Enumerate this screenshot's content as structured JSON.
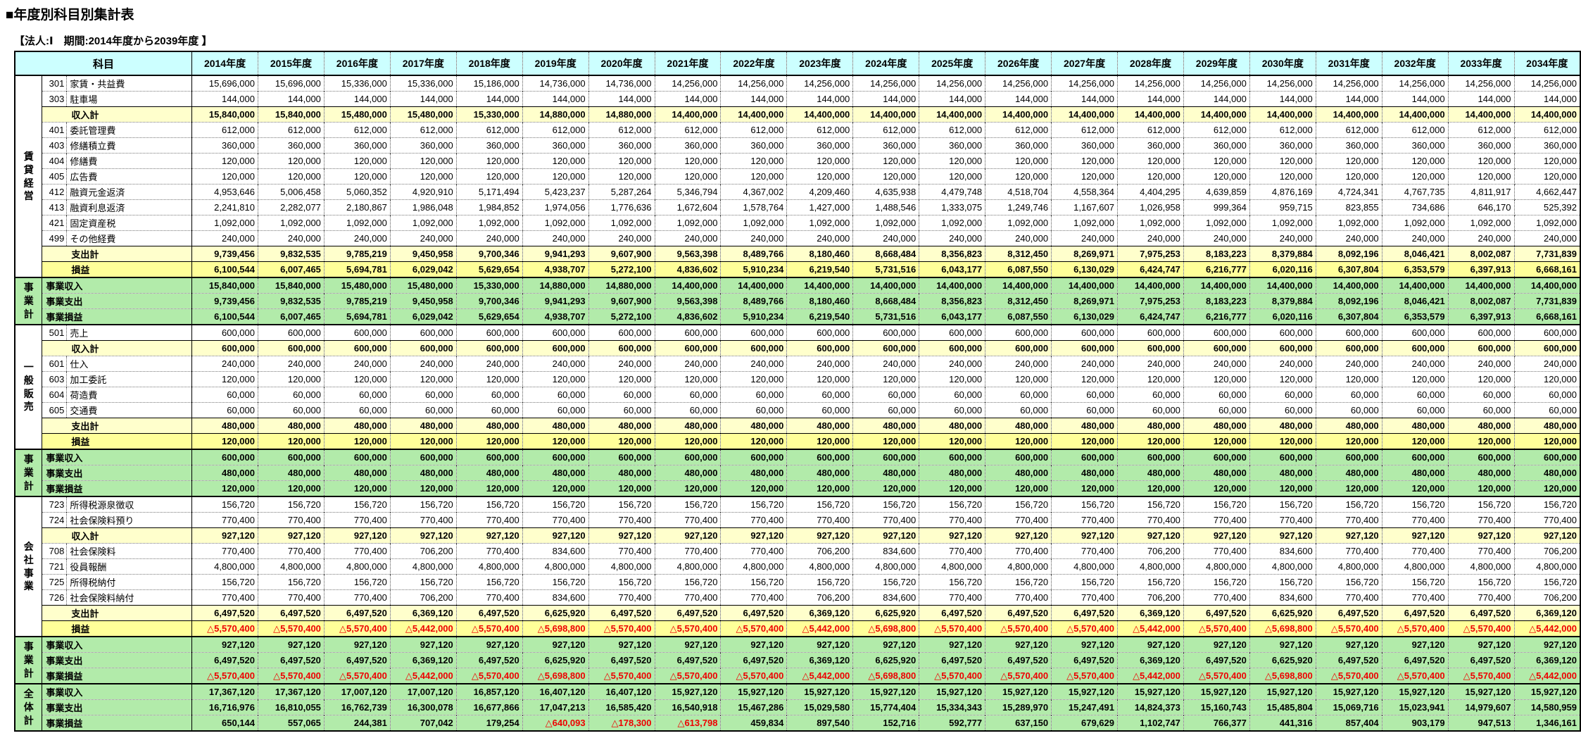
{
  "page": {
    "title": "■年度別科目別集計表",
    "subtitle": "【法人:Ⅰ　期間:2014年度から2039年度 】"
  },
  "colors": {
    "header_bg": "#CCFFFF",
    "group_blue_bg": "#99CCFF",
    "subtotal_bg": "#FFFFCC",
    "profit_bg": "#FFFF99",
    "business_bg": "#B2EBAA",
    "negative_text": "#EE0000"
  },
  "table": {
    "subject_header": "科目",
    "year_columns": [
      "2014年度",
      "2015年度",
      "2016年度",
      "2017年度",
      "2018年度",
      "2019年度",
      "2020年度",
      "2021年度",
      "2022年度",
      "2023年度",
      "2024年度",
      "2025年度",
      "2026年度",
      "2027年度",
      "2028年度",
      "2029年度",
      "2030年度",
      "2031年度",
      "2032年度",
      "2033年度",
      "2034年度"
    ],
    "sections": [
      {
        "group": "賃貸経営",
        "group_style": "grp-cyan",
        "rows": [
          {
            "code": "301",
            "label": "家賃・共益費",
            "style": "item",
            "values": [
              "15,696,000",
              "15,696,000",
              "15,336,000",
              "15,336,000",
              "15,186,000",
              "14,736,000",
              "14,736,000",
              "14,256,000",
              "14,256,000",
              "14,256,000",
              "14,256,000",
              "14,256,000",
              "14,256,000",
              "14,256,000",
              "14,256,000",
              "14,256,000",
              "14,256,000",
              "14,256,000",
              "14,256,000",
              "14,256,000",
              "14,256,000"
            ]
          },
          {
            "code": "303",
            "label": "駐車場",
            "style": "item",
            "fill": "144,000"
          },
          {
            "label": "収入計",
            "style": "subtotal",
            "values": [
              "15,840,000",
              "15,840,000",
              "15,480,000",
              "15,480,000",
              "15,330,000",
              "14,880,000",
              "14,880,000",
              "14,400,000",
              "14,400,000",
              "14,400,000",
              "14,400,000",
              "14,400,000",
              "14,400,000",
              "14,400,000",
              "14,400,000",
              "14,400,000",
              "14,400,000",
              "14,400,000",
              "14,400,000",
              "14,400,000",
              "14,400,000"
            ]
          },
          {
            "code": "401",
            "label": "委託管理費",
            "style": "item",
            "fill": "612,000"
          },
          {
            "code": "403",
            "label": "修繕積立費",
            "style": "item",
            "fill": "360,000"
          },
          {
            "code": "404",
            "label": "修繕費",
            "style": "item",
            "fill": "120,000"
          },
          {
            "code": "405",
            "label": "広告費",
            "style": "item",
            "fill": "120,000"
          },
          {
            "code": "412",
            "label": "融資元金返済",
            "style": "item",
            "values": [
              "4,953,646",
              "5,006,458",
              "5,060,352",
              "4,920,910",
              "5,171,494",
              "5,423,237",
              "5,287,264",
              "5,346,794",
              "4,367,002",
              "4,209,460",
              "4,635,938",
              "4,479,748",
              "4,518,704",
              "4,558,364",
              "4,404,295",
              "4,639,859",
              "4,876,169",
              "4,724,341",
              "4,767,735",
              "4,811,917",
              "4,662,447"
            ]
          },
          {
            "code": "413",
            "label": "融資利息返済",
            "style": "item",
            "values": [
              "2,241,810",
              "2,282,077",
              "2,180,867",
              "1,986,048",
              "1,984,852",
              "1,974,056",
              "1,776,636",
              "1,672,604",
              "1,578,764",
              "1,427,000",
              "1,488,546",
              "1,333,075",
              "1,249,746",
              "1,167,607",
              "1,026,958",
              "999,364",
              "959,715",
              "823,855",
              "734,686",
              "646,170",
              "525,392"
            ]
          },
          {
            "code": "421",
            "label": "固定資産税",
            "style": "item",
            "fill": "1,092,000"
          },
          {
            "code": "499",
            "label": "その他経費",
            "style": "item",
            "fill": "240,000"
          },
          {
            "label": "支出計",
            "style": "subtotal",
            "values": [
              "9,739,456",
              "9,832,535",
              "9,785,219",
              "9,450,958",
              "9,700,346",
              "9,941,293",
              "9,607,900",
              "9,563,398",
              "8,489,766",
              "8,180,460",
              "8,668,484",
              "8,356,823",
              "8,312,450",
              "8,269,971",
              "7,975,253",
              "8,183,223",
              "8,379,884",
              "8,092,196",
              "8,046,421",
              "8,002,087",
              "7,731,839"
            ]
          },
          {
            "label": "損益",
            "style": "profit",
            "values": [
              "6,100,544",
              "6,007,465",
              "5,694,781",
              "6,029,042",
              "5,629,654",
              "4,938,707",
              "5,272,100",
              "4,836,602",
              "5,910,234",
              "6,219,540",
              "5,731,516",
              "6,043,177",
              "6,087,550",
              "6,130,029",
              "6,424,747",
              "6,216,777",
              "6,020,116",
              "6,307,804",
              "6,353,579",
              "6,397,913",
              "6,668,161"
            ]
          }
        ]
      },
      {
        "group": "事業計",
        "group_style": "grp-blue",
        "rows": [
          {
            "label": "事業収入",
            "style": "business",
            "values": [
              "15,840,000",
              "15,840,000",
              "15,480,000",
              "15,480,000",
              "15,330,000",
              "14,880,000",
              "14,880,000",
              "14,400,000",
              "14,400,000",
              "14,400,000",
              "14,400,000",
              "14,400,000",
              "14,400,000",
              "14,400,000",
              "14,400,000",
              "14,400,000",
              "14,400,000",
              "14,400,000",
              "14,400,000",
              "14,400,000",
              "14,400,000"
            ]
          },
          {
            "label": "事業支出",
            "style": "business",
            "values": [
              "9,739,456",
              "9,832,535",
              "9,785,219",
              "9,450,958",
              "9,700,346",
              "9,941,293",
              "9,607,900",
              "9,563,398",
              "8,489,766",
              "8,180,460",
              "8,668,484",
              "8,356,823",
              "8,312,450",
              "8,269,971",
              "7,975,253",
              "8,183,223",
              "8,379,884",
              "8,092,196",
              "8,046,421",
              "8,002,087",
              "7,731,839"
            ]
          },
          {
            "label": "事業損益",
            "style": "business",
            "values": [
              "6,100,544",
              "6,007,465",
              "5,694,781",
              "6,029,042",
              "5,629,654",
              "4,938,707",
              "5,272,100",
              "4,836,602",
              "5,910,234",
              "6,219,540",
              "5,731,516",
              "6,043,177",
              "6,087,550",
              "6,130,029",
              "6,424,747",
              "6,216,777",
              "6,020,116",
              "6,307,804",
              "6,353,579",
              "6,397,913",
              "6,668,161"
            ]
          }
        ]
      },
      {
        "group": "一般販売",
        "group_style": "grp-cyan",
        "rows": [
          {
            "code": "501",
            "label": "売上",
            "style": "item",
            "fill": "600,000"
          },
          {
            "label": "収入計",
            "style": "subtotal",
            "fill": "600,000"
          },
          {
            "code": "601",
            "label": "仕入",
            "style": "item",
            "fill": "240,000"
          },
          {
            "code": "603",
            "label": "加工委託",
            "style": "item",
            "fill": "120,000"
          },
          {
            "code": "604",
            "label": "荷造費",
            "style": "item",
            "fill": "60,000"
          },
          {
            "code": "605",
            "label": "交通費",
            "style": "item",
            "fill": "60,000"
          },
          {
            "label": "支出計",
            "style": "subtotal",
            "fill": "480,000"
          },
          {
            "label": "損益",
            "style": "profit",
            "fill": "120,000"
          }
        ]
      },
      {
        "group": "事業計",
        "group_style": "grp-blue",
        "rows": [
          {
            "label": "事業収入",
            "style": "business",
            "fill": "600,000"
          },
          {
            "label": "事業支出",
            "style": "business",
            "fill": "480,000"
          },
          {
            "label": "事業損益",
            "style": "business",
            "fill": "120,000"
          }
        ]
      },
      {
        "group": "会社事業",
        "group_style": "grp-cyan",
        "rows": [
          {
            "code": "723",
            "label": "所得税源泉徴収",
            "style": "item",
            "fill": "156,720"
          },
          {
            "code": "724",
            "label": "社会保険料預り",
            "style": "item",
            "fill": "770,400"
          },
          {
            "label": "収入計",
            "style": "subtotal",
            "fill": "927,120"
          },
          {
            "code": "708",
            "label": "社会保険料",
            "style": "item",
            "values": [
              "770,400",
              "770,400",
              "770,400",
              "706,200",
              "770,400",
              "834,600",
              "770,400",
              "770,400",
              "770,400",
              "706,200",
              "834,600",
              "770,400",
              "770,400",
              "770,400",
              "706,200",
              "770,400",
              "834,600",
              "770,400",
              "770,400",
              "770,400",
              "706,200"
            ]
          },
          {
            "code": "721",
            "label": "役員報酬",
            "style": "item",
            "fill": "4,800,000"
          },
          {
            "code": "725",
            "label": "所得税納付",
            "style": "item",
            "fill": "156,720"
          },
          {
            "code": "726",
            "label": "社会保険料納付",
            "style": "item",
            "values": [
              "770,400",
              "770,400",
              "770,400",
              "706,200",
              "770,400",
              "834,600",
              "770,400",
              "770,400",
              "770,400",
              "706,200",
              "834,600",
              "770,400",
              "770,400",
              "770,400",
              "706,200",
              "770,400",
              "834,600",
              "770,400",
              "770,400",
              "770,400",
              "706,200"
            ]
          },
          {
            "label": "支出計",
            "style": "subtotal",
            "values": [
              "6,497,520",
              "6,497,520",
              "6,497,520",
              "6,369,120",
              "6,497,520",
              "6,625,920",
              "6,497,520",
              "6,497,520",
              "6,497,520",
              "6,369,120",
              "6,625,920",
              "6,497,520",
              "6,497,520",
              "6,497,520",
              "6,369,120",
              "6,497,520",
              "6,625,920",
              "6,497,520",
              "6,497,520",
              "6,497,520",
              "6,369,120"
            ]
          },
          {
            "label": "損益",
            "style": "profit",
            "values": [
              "△5,570,400",
              "△5,570,400",
              "△5,570,400",
              "△5,442,000",
              "△5,570,400",
              "△5,698,800",
              "△5,570,400",
              "△5,570,400",
              "△5,570,400",
              "△5,442,000",
              "△5,698,800",
              "△5,570,400",
              "△5,570,400",
              "△5,570,400",
              "△5,442,000",
              "△5,570,400",
              "△5,698,800",
              "△5,570,400",
              "△5,570,400",
              "△5,570,400",
              "△5,442,000"
            ]
          }
        ]
      },
      {
        "group": "事業計",
        "group_style": "grp-blue",
        "rows": [
          {
            "label": "事業収入",
            "style": "business",
            "fill": "927,120"
          },
          {
            "label": "事業支出",
            "style": "business",
            "values": [
              "6,497,520",
              "6,497,520",
              "6,497,520",
              "6,369,120",
              "6,497,520",
              "6,625,920",
              "6,497,520",
              "6,497,520",
              "6,497,520",
              "6,369,120",
              "6,625,920",
              "6,497,520",
              "6,497,520",
              "6,497,520",
              "6,369,120",
              "6,497,520",
              "6,625,920",
              "6,497,520",
              "6,497,520",
              "6,497,520",
              "6,369,120"
            ]
          },
          {
            "label": "事業損益",
            "style": "business",
            "values": [
              "△5,570,400",
              "△5,570,400",
              "△5,570,400",
              "△5,442,000",
              "△5,570,400",
              "△5,698,800",
              "△5,570,400",
              "△5,570,400",
              "△5,570,400",
              "△5,442,000",
              "△5,698,800",
              "△5,570,400",
              "△5,570,400",
              "△5,570,400",
              "△5,442,000",
              "△5,570,400",
              "△5,698,800",
              "△5,570,400",
              "△5,570,400",
              "△5,570,400",
              "△5,442,000"
            ]
          }
        ]
      },
      {
        "group": "全体計",
        "group_style": "grp-blue",
        "rows": [
          {
            "label": "事業収入",
            "style": "business",
            "values": [
              "17,367,120",
              "17,367,120",
              "17,007,120",
              "17,007,120",
              "16,857,120",
              "16,407,120",
              "16,407,120",
              "15,927,120",
              "15,927,120",
              "15,927,120",
              "15,927,120",
              "15,927,120",
              "15,927,120",
              "15,927,120",
              "15,927,120",
              "15,927,120",
              "15,927,120",
              "15,927,120",
              "15,927,120",
              "15,927,120",
              "15,927,120"
            ]
          },
          {
            "label": "事業支出",
            "style": "business",
            "values": [
              "16,716,976",
              "16,810,055",
              "16,762,739",
              "16,300,078",
              "16,677,866",
              "17,047,213",
              "16,585,420",
              "16,540,918",
              "15,467,286",
              "15,029,580",
              "15,774,404",
              "15,334,343",
              "15,289,970",
              "15,247,491",
              "14,824,373",
              "15,160,743",
              "15,485,804",
              "15,069,716",
              "15,023,941",
              "14,979,607",
              "14,580,959"
            ]
          },
          {
            "label": "事業損益",
            "style": "business",
            "values": [
              "650,144",
              "557,065",
              "244,381",
              "707,042",
              "179,254",
              "△640,093",
              "△178,300",
              "△613,798",
              "459,834",
              "897,540",
              "152,716",
              "592,777",
              "637,150",
              "679,629",
              "1,102,747",
              "766,377",
              "441,316",
              "857,404",
              "903,179",
              "947,513",
              "1,346,161"
            ]
          }
        ]
      }
    ]
  }
}
